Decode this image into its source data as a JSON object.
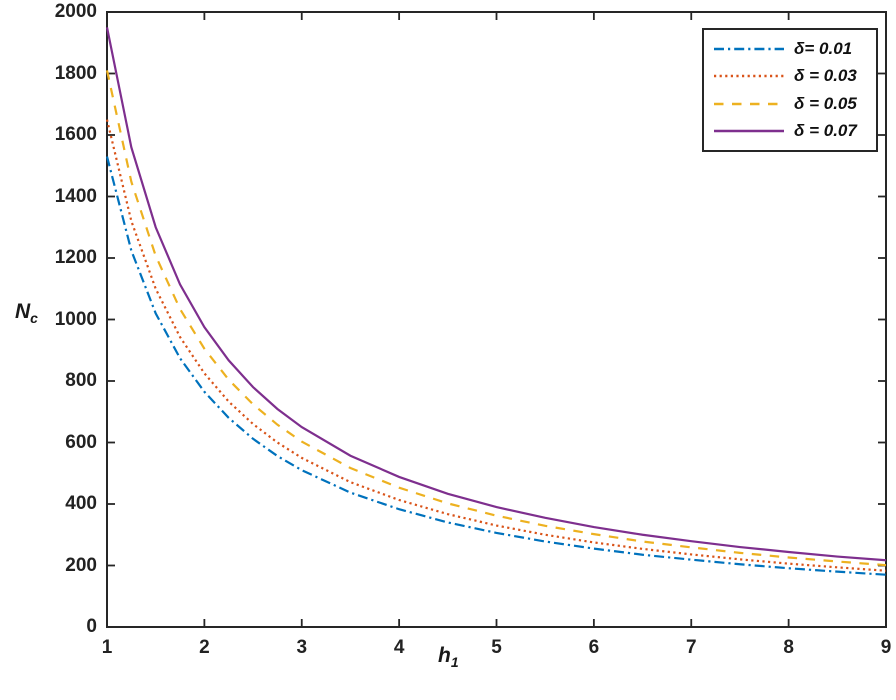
{
  "chart_data": {
    "type": "line",
    "title": "",
    "xlabel": {
      "main": "h",
      "sub": "1"
    },
    "ylabel": {
      "main": "N",
      "sub": "c"
    },
    "xlim": [
      1,
      9
    ],
    "ylim": [
      0,
      2000
    ],
    "xticks": [
      1,
      2,
      3,
      4,
      5,
      6,
      7,
      8,
      9
    ],
    "yticks": [
      0,
      200,
      400,
      600,
      800,
      1000,
      1200,
      1400,
      1600,
      1800,
      2000
    ],
    "grid": false,
    "legend_position": "top-right",
    "axis_color": "#262626",
    "background_color": "#ffffff",
    "x": [
      1,
      1.25,
      1.5,
      1.75,
      2,
      2.25,
      2.5,
      2.75,
      3,
      3.5,
      4,
      4.5,
      5,
      5.5,
      6,
      6.5,
      7,
      7.5,
      8,
      8.5,
      9
    ],
    "series": [
      {
        "name": "δ= 0.01",
        "color": "#0072BD",
        "style": "dash-dot",
        "values": [
          1530,
          1224,
          1020,
          874,
          765,
          680,
          612,
          556,
          510,
          437,
          383,
          340,
          306,
          278,
          255,
          235,
          219,
          204,
          191,
          180,
          170
        ]
      },
      {
        "name": "δ = 0.03",
        "color": "#D95319",
        "style": "dotted",
        "values": [
          1650,
          1320,
          1100,
          943,
          825,
          733,
          660,
          600,
          550,
          471,
          413,
          367,
          330,
          300,
          275,
          254,
          236,
          220,
          206,
          194,
          183
        ]
      },
      {
        "name": "δ = 0.05",
        "color": "#EDB120",
        "style": "dashed",
        "values": [
          1810,
          1448,
          1207,
          1034,
          905,
          804,
          724,
          658,
          603,
          517,
          453,
          402,
          362,
          329,
          302,
          278,
          259,
          241,
          226,
          213,
          201
        ]
      },
      {
        "name": "δ = 0.07",
        "color": "#7E2F8E",
        "style": "solid",
        "values": [
          1950,
          1560,
          1300,
          1114,
          975,
          867,
          780,
          709,
          650,
          557,
          488,
          433,
          390,
          355,
          325,
          300,
          279,
          260,
          244,
          229,
          217
        ]
      }
    ]
  }
}
